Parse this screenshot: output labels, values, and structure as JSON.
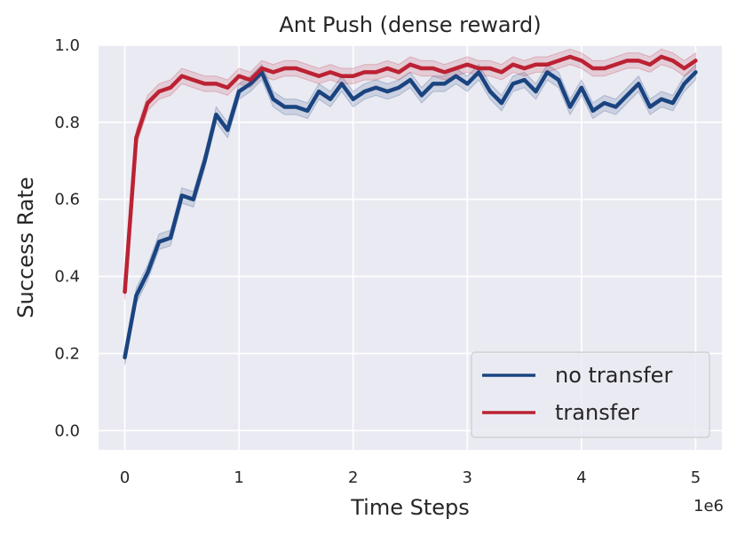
{
  "chart_data": {
    "type": "line",
    "title": "Ant Push (dense reward)",
    "xlabel": "Time Steps",
    "ylabel": "Success Rate",
    "x_offset_label": "1e6",
    "xlim": [
      -0.23,
      5.23
    ],
    "ylim": [
      -0.05,
      1.0
    ],
    "x_ticks": [
      0,
      1,
      2,
      3,
      4,
      5
    ],
    "x_tick_labels": [
      "0",
      "1",
      "2",
      "3",
      "4",
      "5"
    ],
    "y_ticks": [
      0.0,
      0.2,
      0.4,
      0.6,
      0.8,
      1.0
    ],
    "y_tick_labels": [
      "0.0",
      "0.2",
      "0.4",
      "0.6",
      "0.8",
      "1.0"
    ],
    "grid": true,
    "legend_position": "lower-right",
    "x": [
      0.0,
      0.1,
      0.2,
      0.3,
      0.4,
      0.5,
      0.6,
      0.7,
      0.8,
      0.9,
      1.0,
      1.1,
      1.2,
      1.3,
      1.4,
      1.5,
      1.6,
      1.7,
      1.8,
      1.9,
      2.0,
      2.1,
      2.2,
      2.3,
      2.4,
      2.5,
      2.6,
      2.7,
      2.8,
      2.9,
      3.0,
      3.1,
      3.2,
      3.3,
      3.4,
      3.5,
      3.6,
      3.7,
      3.8,
      3.9,
      4.0,
      4.1,
      4.2,
      4.3,
      4.4,
      4.5,
      4.6,
      4.7,
      4.8,
      4.9,
      5.0
    ],
    "series": [
      {
        "name": "no transfer",
        "color": "#1a4480",
        "values": [
          0.19,
          0.35,
          0.41,
          0.49,
          0.5,
          0.61,
          0.6,
          0.7,
          0.82,
          0.78,
          0.88,
          0.9,
          0.93,
          0.86,
          0.84,
          0.84,
          0.83,
          0.88,
          0.86,
          0.9,
          0.86,
          0.88,
          0.89,
          0.88,
          0.89,
          0.91,
          0.87,
          0.9,
          0.9,
          0.92,
          0.9,
          0.93,
          0.88,
          0.85,
          0.9,
          0.91,
          0.88,
          0.93,
          0.91,
          0.84,
          0.89,
          0.83,
          0.85,
          0.84,
          0.87,
          0.9,
          0.84,
          0.86,
          0.85,
          0.9,
          0.93
        ]
      },
      {
        "name": "transfer",
        "color": "#bb2233",
        "values": [
          0.36,
          0.76,
          0.85,
          0.88,
          0.89,
          0.92,
          0.91,
          0.9,
          0.9,
          0.89,
          0.92,
          0.91,
          0.94,
          0.93,
          0.94,
          0.94,
          0.93,
          0.92,
          0.93,
          0.92,
          0.92,
          0.93,
          0.93,
          0.94,
          0.93,
          0.95,
          0.94,
          0.94,
          0.93,
          0.94,
          0.95,
          0.94,
          0.94,
          0.93,
          0.95,
          0.94,
          0.95,
          0.95,
          0.96,
          0.97,
          0.96,
          0.94,
          0.94,
          0.95,
          0.96,
          0.96,
          0.95,
          0.97,
          0.96,
          0.94,
          0.96
        ]
      }
    ]
  }
}
